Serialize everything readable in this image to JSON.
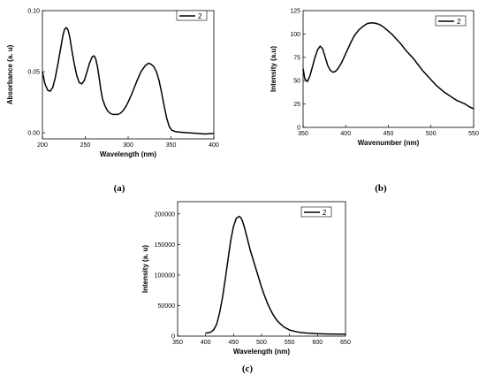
{
  "chart_data": [
    {
      "type": "line",
      "panel_label": "(a)",
      "xlabel": "Wavelength (nm)",
      "ylabel": "Absorbance (a. u)",
      "xlim": [
        200,
        400
      ],
      "ylim": [
        -0.005,
        0.1
      ],
      "xticks": [
        200,
        250,
        300,
        350,
        400
      ],
      "yticks": [
        0.0,
        0.05,
        0.1
      ],
      "ytick_labels": [
        "0.00",
        "0.05",
        "0.10"
      ],
      "legend_placement": "top-right",
      "grid": false,
      "series": [
        {
          "name": "2",
          "x": [
            200,
            203,
            206,
            209,
            212,
            215,
            218,
            221,
            224,
            226,
            228,
            230,
            232,
            234,
            237,
            240,
            243,
            246,
            249,
            252,
            255,
            258,
            260,
            262,
            264,
            266,
            268,
            270,
            273,
            276,
            279,
            282,
            285,
            288,
            291,
            294,
            297,
            300,
            305,
            310,
            315,
            320,
            324,
            327,
            330,
            333,
            336,
            339,
            342,
            345,
            348,
            351,
            355,
            360,
            370,
            380,
            390,
            400
          ],
          "y": [
            0.05,
            0.04,
            0.035,
            0.034,
            0.037,
            0.045,
            0.056,
            0.068,
            0.08,
            0.085,
            0.086,
            0.084,
            0.078,
            0.069,
            0.057,
            0.047,
            0.041,
            0.04,
            0.043,
            0.05,
            0.057,
            0.062,
            0.063,
            0.061,
            0.055,
            0.046,
            0.036,
            0.028,
            0.022,
            0.018,
            0.016,
            0.015,
            0.015,
            0.015,
            0.016,
            0.018,
            0.021,
            0.025,
            0.033,
            0.042,
            0.05,
            0.055,
            0.057,
            0.056,
            0.054,
            0.05,
            0.043,
            0.033,
            0.022,
            0.012,
            0.005,
            0.002,
            0.001,
            0.0005,
            0.0,
            -0.0005,
            -0.001,
            -0.0005
          ]
        }
      ]
    },
    {
      "type": "line",
      "panel_label": "(b)",
      "xlabel": "Wavenumber (nm)",
      "ylabel": "Intensity (a.u)",
      "xlim": [
        350,
        550
      ],
      "ylim": [
        0,
        125
      ],
      "xticks": [
        350,
        400,
        450,
        500,
        550
      ],
      "yticks": [
        0,
        25,
        50,
        75,
        100,
        125
      ],
      "ytick_labels": [
        "0",
        "25",
        "50",
        "75",
        "100",
        "125"
      ],
      "legend_placement": "top-right",
      "grid": false,
      "series": [
        {
          "name": "2",
          "x": [
            350,
            352,
            355,
            358,
            361,
            364,
            367,
            370,
            373,
            376,
            379,
            382,
            385,
            388,
            391,
            395,
            400,
            405,
            410,
            415,
            420,
            425,
            430,
            435,
            440,
            445,
            450,
            455,
            460,
            465,
            470,
            475,
            480,
            485,
            490,
            495,
            500,
            505,
            510,
            515,
            520,
            525,
            530,
            535,
            540,
            545,
            550
          ],
          "y": [
            63,
            52,
            49,
            55,
            65,
            75,
            83,
            87,
            84,
            75,
            66,
            61,
            59,
            60,
            63,
            69,
            79,
            89,
            98,
            104,
            108,
            111,
            112,
            111.5,
            110,
            107,
            103,
            99,
            94,
            89,
            83,
            78,
            73,
            67,
            61,
            56,
            51,
            46,
            42,
            38,
            35,
            32,
            29,
            27,
            25,
            22,
            20
          ]
        }
      ]
    },
    {
      "type": "line",
      "panel_label": "(c)",
      "xlabel": "Wavelength (nm)",
      "ylabel": "Intensity (a. u)",
      "xlim": [
        350,
        650
      ],
      "ylim": [
        0,
        220000
      ],
      "xticks": [
        350,
        400,
        450,
        500,
        550,
        600,
        650
      ],
      "yticks": [
        0,
        50000,
        100000,
        150000,
        200000
      ],
      "ytick_labels": [
        "0",
        "50000",
        "100000",
        "150000",
        "200000"
      ],
      "legend_placement": "top-right",
      "grid": false,
      "series": [
        {
          "name": "2",
          "x": [
            400,
            405,
            410,
            415,
            420,
            425,
            430,
            435,
            440,
            445,
            450,
            455,
            460,
            463,
            466,
            470,
            475,
            480,
            485,
            490,
            495,
            500,
            505,
            510,
            515,
            520,
            525,
            530,
            540,
            550,
            560,
            570,
            580,
            590,
            600,
            620,
            640,
            650
          ],
          "y": [
            5000,
            5500,
            7000,
            11000,
            20000,
            38000,
            62000,
            92000,
            125000,
            157000,
            180000,
            193000,
            196000,
            194000,
            188000,
            176000,
            158000,
            140000,
            125000,
            110000,
            95000,
            80000,
            67000,
            55000,
            45000,
            36000,
            29000,
            23000,
            15000,
            10000,
            7500,
            6000,
            5000,
            4500,
            4000,
            3500,
            3200,
            3000
          ]
        }
      ]
    }
  ]
}
